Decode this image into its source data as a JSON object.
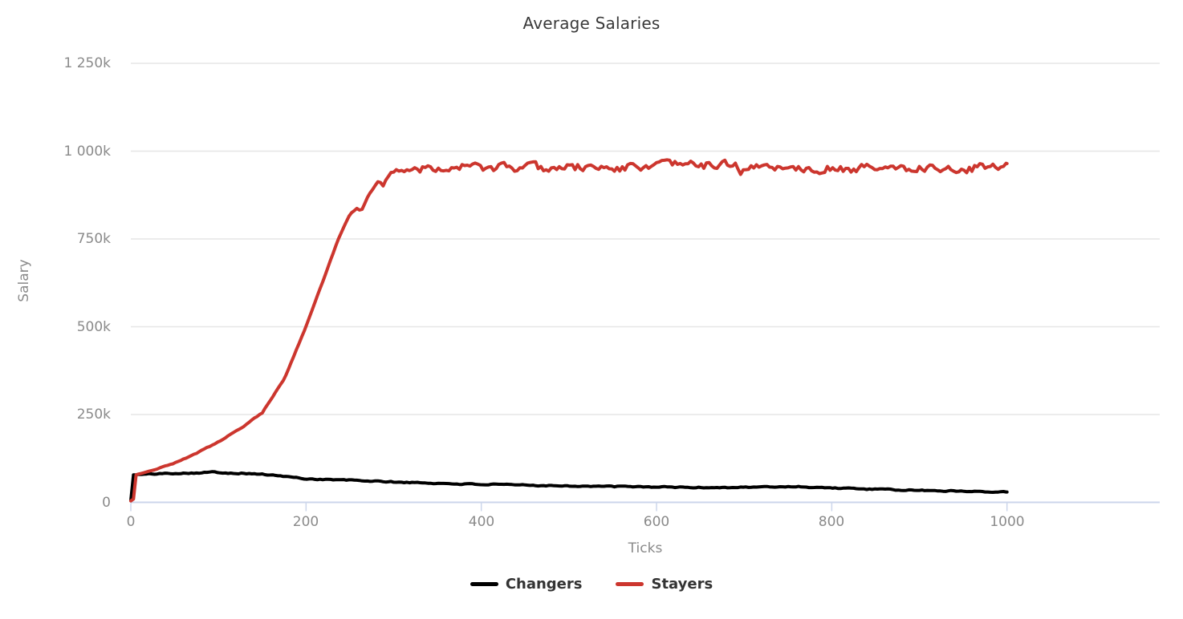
{
  "chart_data": {
    "type": "line",
    "title": "Average Salaries",
    "xlabel": "Ticks",
    "ylabel": "Salary",
    "x_range": [
      0,
      1000
    ],
    "y_range": [
      0,
      1250000
    ],
    "x_ticks": [
      0,
      200,
      400,
      600,
      800,
      1000
    ],
    "x_tick_labels": [
      "0",
      "200",
      "400",
      "600",
      "800",
      "1000"
    ],
    "y_ticks": [
      0,
      250000,
      500000,
      750000,
      1000000,
      1250000
    ],
    "y_tick_labels": [
      "0",
      "250k",
      "500k",
      "750k",
      "1 000k",
      "1 250k"
    ],
    "grid": "horizontal gridlines on, vertical off",
    "legend_position": "bottom-center",
    "colors": {
      "background": "#ffffff",
      "title_text": "#3a3a3a",
      "axis_label_text": "#8a8a8a",
      "legend_text": "#333333",
      "gridline": "#e6e6e6",
      "axis_line": "#ccd6eb",
      "changers_line": "#000000",
      "stayers_line": "#cc362e"
    },
    "series": [
      {
        "name": "Changers",
        "color": "#000000",
        "unit": "salary (values in thousands)",
        "anchors_k": [
          [
            0,
            5
          ],
          [
            2,
            78
          ],
          [
            25,
            81
          ],
          [
            50,
            83
          ],
          [
            75,
            84
          ],
          [
            95,
            86
          ],
          [
            110,
            84
          ],
          [
            125,
            83
          ],
          [
            150,
            80
          ],
          [
            175,
            74
          ],
          [
            200,
            67
          ],
          [
            250,
            63
          ],
          [
            300,
            58
          ],
          [
            350,
            54
          ],
          [
            400,
            51
          ],
          [
            450,
            49
          ],
          [
            500,
            47
          ],
          [
            550,
            45
          ],
          [
            600,
            44
          ],
          [
            650,
            42
          ],
          [
            700,
            43
          ],
          [
            760,
            45
          ],
          [
            800,
            41
          ],
          [
            850,
            37
          ],
          [
            900,
            34
          ],
          [
            950,
            32
          ],
          [
            1000,
            30
          ]
        ],
        "noise_k": [
          {
            "until": 8,
            "amp": 0
          },
          {
            "until": 1001,
            "amp": 2.6
          }
        ],
        "seed": 101
      },
      {
        "name": "Stayers",
        "color": "#cc362e",
        "unit": "salary (values in thousands)",
        "anchors_k": [
          [
            0,
            5
          ],
          [
            4,
            10
          ],
          [
            5,
            78
          ],
          [
            25,
            92
          ],
          [
            50,
            112
          ],
          [
            75,
            140
          ],
          [
            100,
            172
          ],
          [
            125,
            210
          ],
          [
            150,
            255
          ],
          [
            175,
            350
          ],
          [
            200,
            500
          ],
          [
            220,
            635
          ],
          [
            237,
            750
          ],
          [
            250,
            820
          ],
          [
            258,
            838
          ],
          [
            263,
            830
          ],
          [
            270,
            868
          ],
          [
            277,
            895
          ],
          [
            283,
            917
          ],
          [
            288,
            902
          ],
          [
            293,
            930
          ],
          [
            300,
            942
          ],
          [
            320,
            950
          ],
          [
            350,
            956
          ],
          [
            400,
            953
          ],
          [
            450,
            951
          ],
          [
            500,
            954
          ],
          [
            550,
            952
          ],
          [
            600,
            958
          ],
          [
            640,
            962
          ],
          [
            685,
            958
          ],
          [
            690,
            976
          ],
          [
            695,
            950
          ],
          [
            705,
            938
          ],
          [
            710,
            956
          ],
          [
            750,
            954
          ],
          [
            800,
            951
          ],
          [
            850,
            950
          ],
          [
            900,
            954
          ],
          [
            950,
            951
          ],
          [
            1000,
            956
          ]
        ],
        "noise_k": [
          {
            "until": 292,
            "amp": 2
          },
          {
            "until": 1001,
            "amp": 20
          }
        ],
        "seed": 202
      }
    ]
  }
}
